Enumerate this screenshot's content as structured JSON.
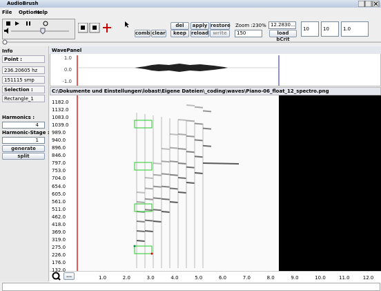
{
  "window": {
    "title": "AudioBrush"
  },
  "menu": [
    "File",
    "Options",
    "Help"
  ],
  "toolbar": {
    "comb": "comb",
    "clear": "clear",
    "del": "del",
    "apply": "apply",
    "restore": "restore",
    "keep": "keep",
    "reload": "reload",
    "write": "write",
    "zoom": "Zoom :230%",
    "zoom_select": "150",
    "value_select": "12.2830...",
    "load": "load bCrit",
    "fields": [
      "10",
      "10",
      "1.0"
    ]
  },
  "info": {
    "title": "Info",
    "point_label": "Point :",
    "frequency": "236.20605 hz",
    "samples": "151115 smp",
    "selection_label": "Selection :",
    "selection": "Rectangle_1",
    "harmonics_label": "Harmonics :",
    "harmonics": "4",
    "stage_label": "Harmonic-Stage :",
    "stage": "1",
    "generate": "generate",
    "split": "split"
  },
  "wave_panel": {
    "title": "WavePanel",
    "y_labels": [
      "1.0",
      "0.0",
      "-1.0"
    ]
  },
  "spectro_panel": {
    "title": "C:\\Dokumente und Einstellungen\\lobast\\Eigene Dateien\\_coding\\waves\\Piano-06_float_12_spectro.png",
    "y_labels": [
      "1182.0",
      "1132.0",
      "1083.0",
      "1039.0",
      "989.0",
      "940.0",
      "896.0",
      "846.0",
      "797.0",
      "753.0",
      "704.0",
      "654.0",
      "605.0",
      "561.0",
      "511.0",
      "462.0",
      "418.0",
      "369.0",
      "319.0",
      "275.0",
      "226.0",
      "176.0",
      "132.0"
    ],
    "x_labels": [
      "1.0",
      "2.0",
      "3.0",
      "4.0",
      "5.0",
      "6.0",
      "7.0",
      "8.0",
      "9.0",
      "10.0",
      "11.0",
      "12.0"
    ],
    "more": "..."
  }
}
